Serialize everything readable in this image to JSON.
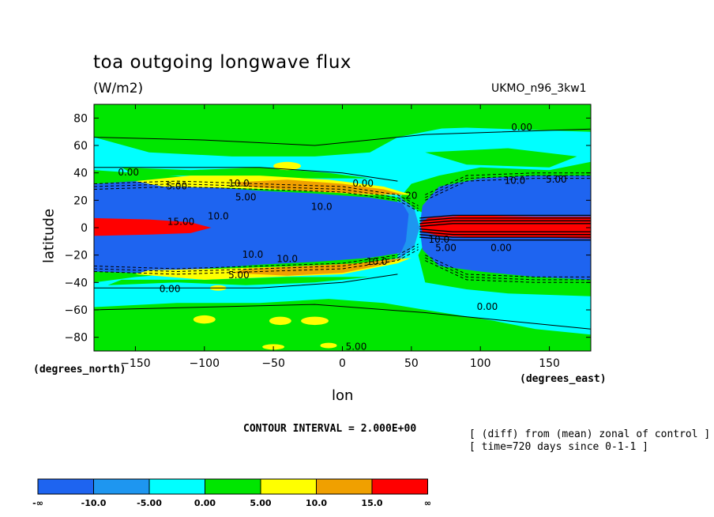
{
  "header": {
    "title": "toa outgoing longwave flux",
    "units": "(W/m2)",
    "model": "UKMO_n96_3kw1"
  },
  "axes": {
    "ylabel": "latitude",
    "xlabel": "lon",
    "yunits": "(degrees_north)",
    "xunits": "(degrees_east)"
  },
  "footer": {
    "contour_interval": "CONTOUR INTERVAL = 2.000E+00",
    "note1": "[ (diff) from (mean) zonal of control ]",
    "note2": "[ time=720 days since 0-1-1 ]"
  },
  "chart_data": {
    "type": "heatmap",
    "title": "toa outgoing longwave flux",
    "subtitle": "(W/m2)",
    "xlabel": "lon",
    "ylabel": "latitude",
    "xlim": [
      -180,
      180
    ],
    "ylim": [
      -90,
      90
    ],
    "xticks": [
      -150,
      -100,
      -50,
      0,
      50,
      100,
      150
    ],
    "yticks": [
      80,
      60,
      40,
      20,
      0,
      -20,
      -40,
      -60,
      -80
    ],
    "colors": {
      "dark_blue": "#1e64f0",
      "mid_blue": "#1e96f0",
      "cyan": "#00ffff",
      "green": "#00e600",
      "yellow": "#ffff00",
      "orange": "#f0a000",
      "red": "#ff0000"
    },
    "colorbar": {
      "labels": [
        "-∞",
        "-10.0",
        "-5.00",
        "0.00",
        "5.00",
        "10.0",
        "15.0",
        "∞"
      ],
      "colors": [
        "#1e64f0",
        "#1e96f0",
        "#00ffff",
        "#00e600",
        "#ffff00",
        "#f0a000",
        "#ff0000"
      ]
    },
    "contour_labels": [
      {
        "text": "0.00",
        "lon": -155,
        "lat": 40
      },
      {
        "text": "5.00",
        "lon": -120,
        "lat": 30
      },
      {
        "text": "10.0",
        "lon": -75,
        "lat": 32
      },
      {
        "text": "5.00",
        "lon": -70,
        "lat": 22
      },
      {
        "text": "0.00",
        "lon": 15,
        "lat": 32
      },
      {
        "text": "10.0",
        "lon": -15,
        "lat": 15
      },
      {
        "text": "20",
        "lon": 50,
        "lat": 23
      },
      {
        "text": "15.00",
        "lon": -117,
        "lat": 4
      },
      {
        "text": "10.0",
        "lon": -90,
        "lat": 8
      },
      {
        "text": "0.00",
        "lon": 130,
        "lat": 73
      },
      {
        "text": "10.0",
        "lon": 125,
        "lat": 34
      },
      {
        "text": "5.00",
        "lon": 155,
        "lat": 35
      },
      {
        "text": "10.0",
        "lon": 70,
        "lat": -9
      },
      {
        "text": "5.00",
        "lon": 75,
        "lat": -15
      },
      {
        "text": "0.00",
        "lon": 115,
        "lat": -15
      },
      {
        "text": "10.0",
        "lon": -65,
        "lat": -20
      },
      {
        "text": "10.0",
        "lon": -40,
        "lat": -23
      },
      {
        "text": "10.0",
        "lon": 25,
        "lat": -25
      },
      {
        "text": "5.00",
        "lon": -75,
        "lat": -35
      },
      {
        "text": "0.00",
        "lon": -125,
        "lat": -45
      },
      {
        "text": "0.00",
        "lon": 105,
        "lat": -58
      },
      {
        "text": "5.00",
        "lon": 10,
        "lat": -87
      }
    ]
  }
}
